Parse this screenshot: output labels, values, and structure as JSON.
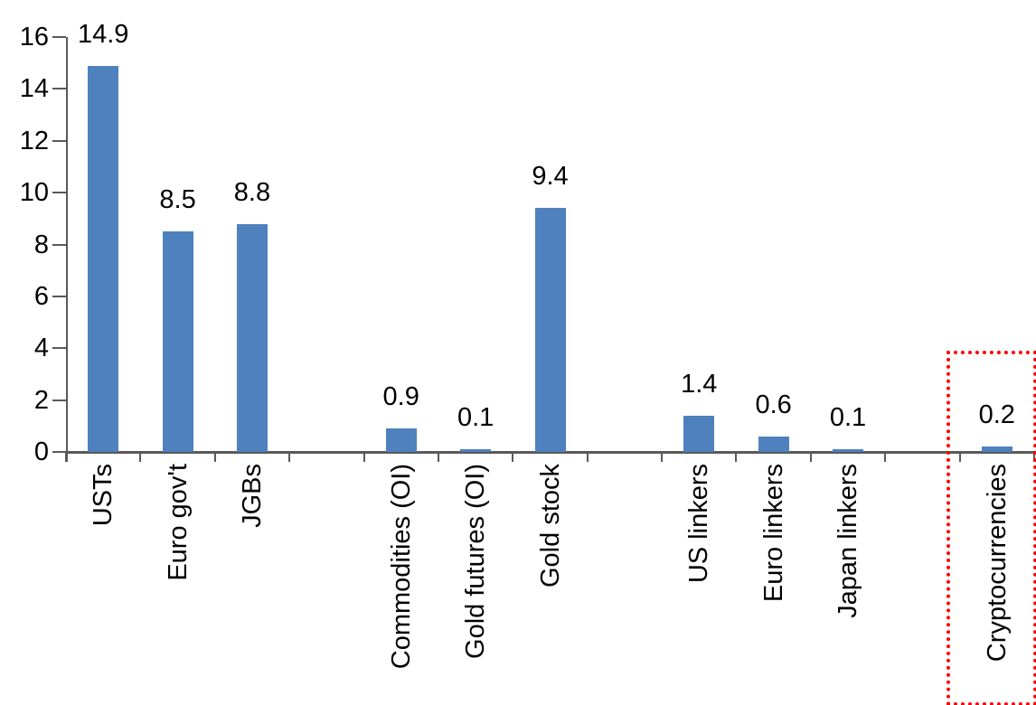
{
  "chart_data": {
    "type": "bar",
    "title": "",
    "categories": [
      "USTs",
      "Euro gov't",
      "JGBs",
      "Commodities (OI)",
      "Gold futures (OI)",
      "Gold stock",
      "US linkers",
      "Euro linkers",
      "Japan linkers",
      "Cryptocurrencies"
    ],
    "values": [
      14.9,
      8.5,
      8.8,
      0.9,
      0.1,
      9.4,
      1.4,
      0.6,
      0.1,
      0.2
    ],
    "data_labels": [
      "14.9",
      "8.5",
      "8.8",
      "0.9",
      "0.1",
      "9.4",
      "1.4",
      "0.6",
      "0.1",
      "0.2"
    ],
    "group_slots": [
      0,
      1,
      2,
      4,
      5,
      6,
      8,
      9,
      10,
      12
    ],
    "total_slots": 13,
    "y_ticks": [
      0,
      2,
      4,
      6,
      8,
      10,
      12,
      14,
      16
    ],
    "ylim": [
      0,
      16
    ],
    "xlabel": "",
    "ylabel": "",
    "grid": false,
    "legend": "none",
    "colors": {
      "bar": "#4E81BD",
      "axis": "#595959",
      "text": "#000000",
      "highlight_box": "#FF0000"
    },
    "highlight": {
      "category": "Cryptocurrencies",
      "value_label": "0.2",
      "style": "red dotted rectangle around highlighted category"
    }
  }
}
